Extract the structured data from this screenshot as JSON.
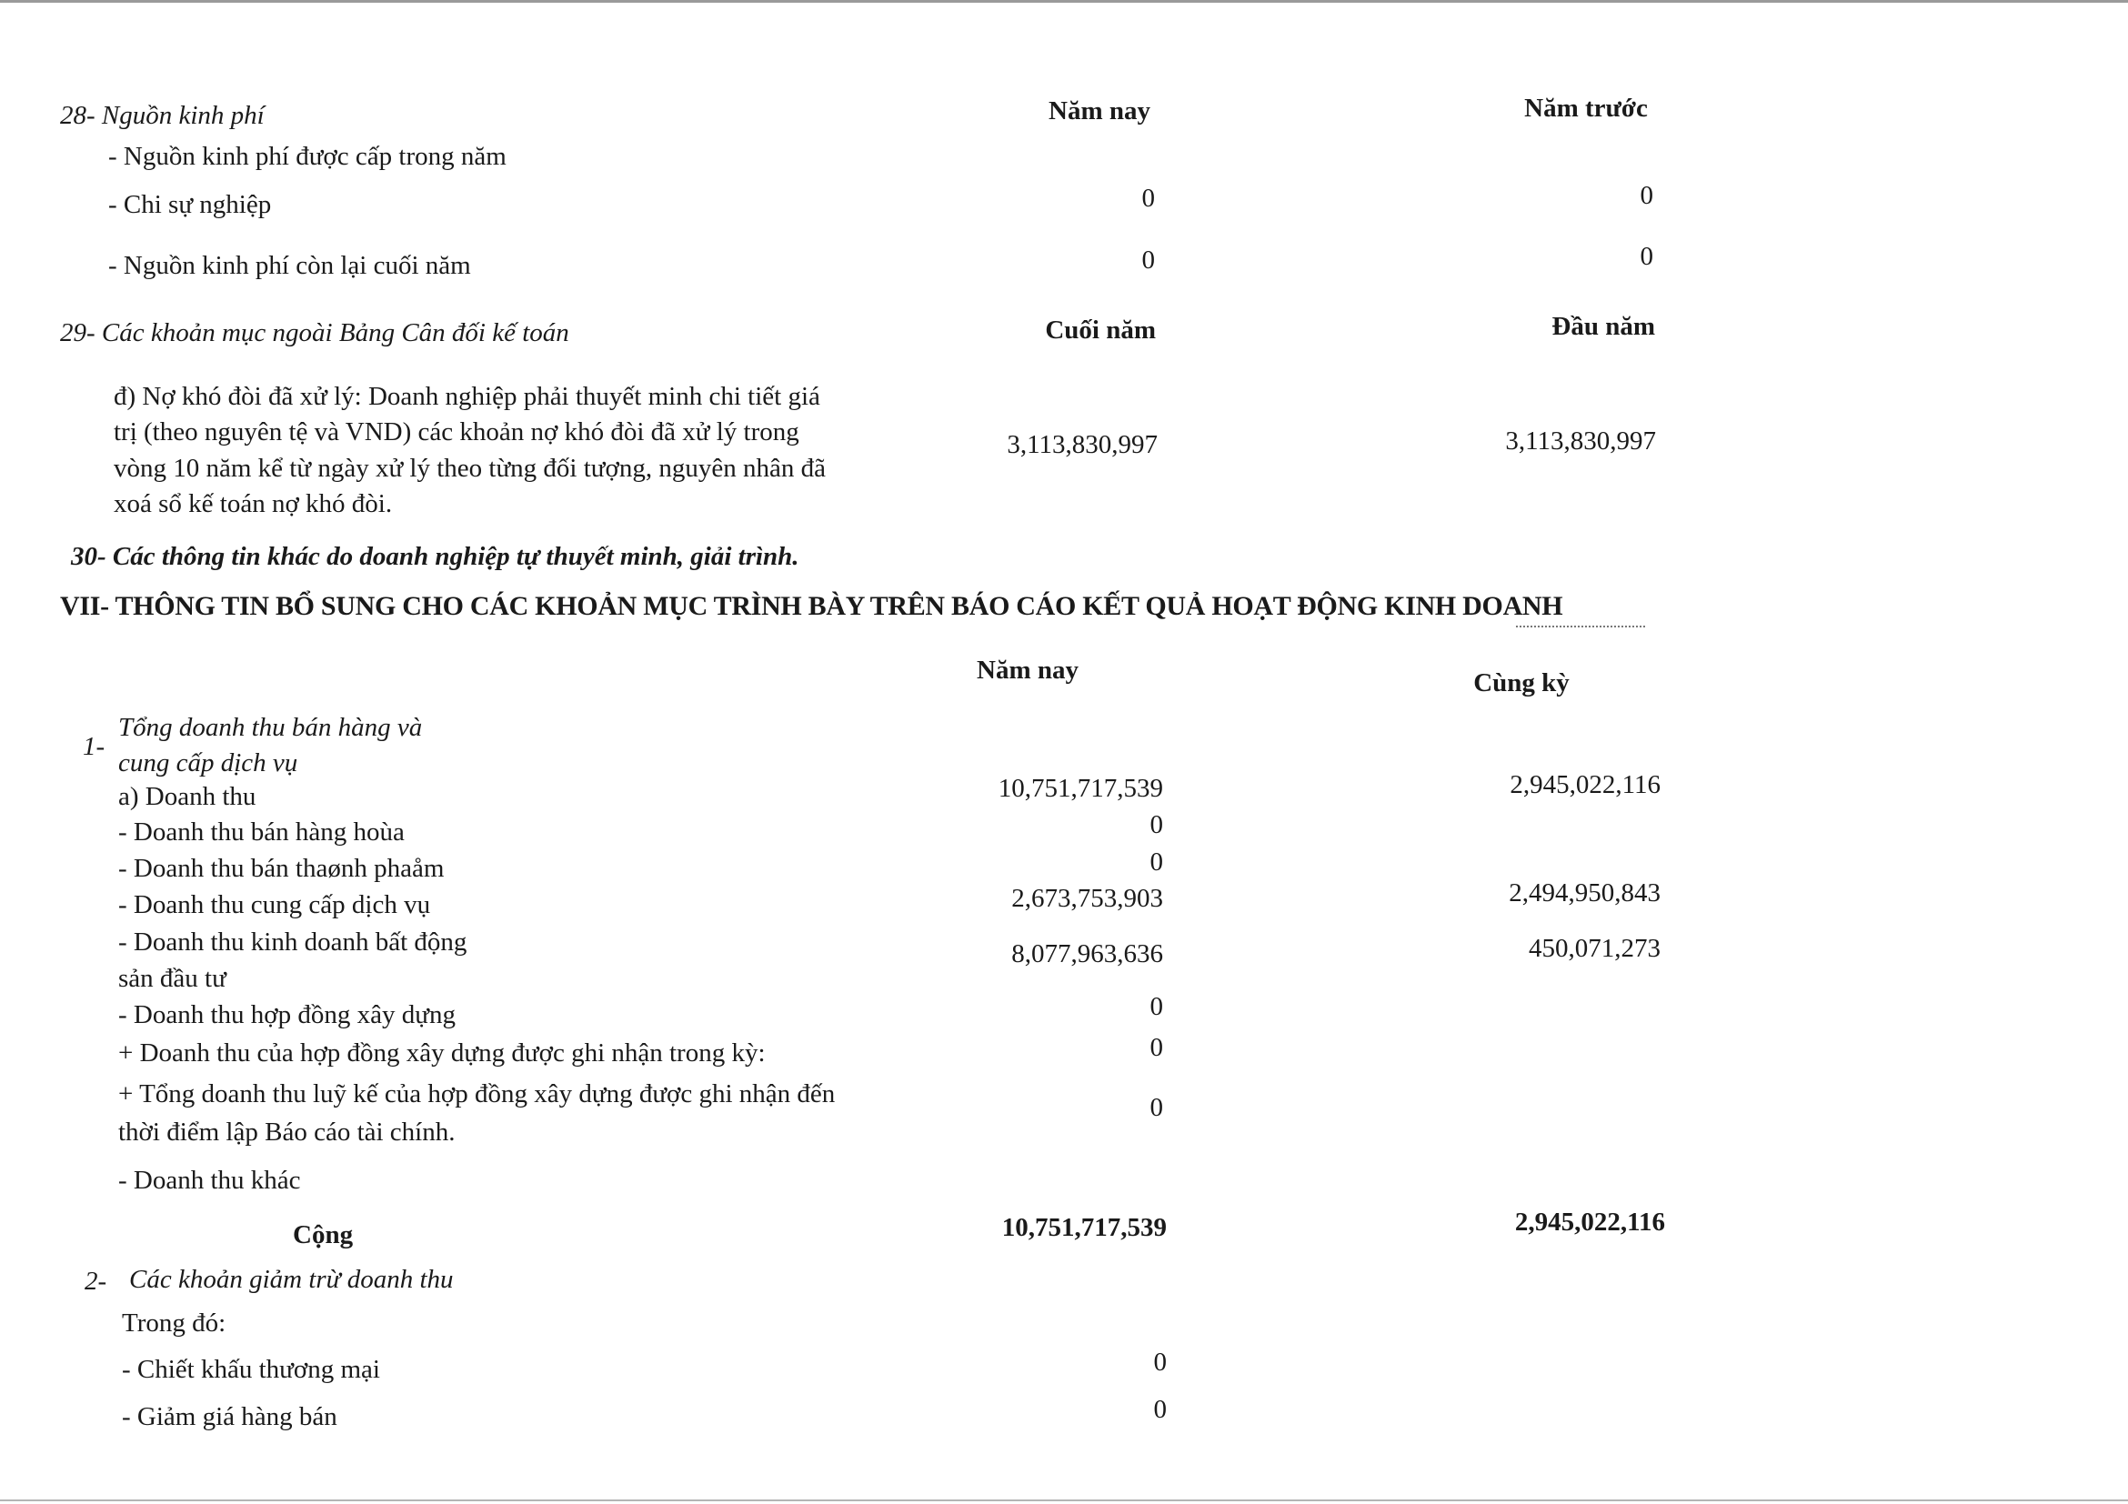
{
  "s28": {
    "title": "28- Nguồn kinh phí",
    "col1": "Năm nay",
    "col2": "Năm trước",
    "rows": [
      {
        "label": "- Nguồn kinh phí được cấp trong năm",
        "v1": "",
        "v2": ""
      },
      {
        "label": "- Chi sự nghiệp",
        "v1": "0",
        "v2": "0"
      },
      {
        "label": "- Nguồn kinh phí còn lại cuối năm",
        "v1": "0",
        "v2": "0"
      }
    ]
  },
  "s29": {
    "title": "29- Các khoản mục ngoài Bảng Cân đối kế toán",
    "col1": "Cuối năm",
    "col2": "Đầu năm",
    "para": [
      "đ) Nợ khó đòi đã xử lý: Doanh nghiệp phải thuyết minh chi tiết giá",
      "trị (theo nguyên tệ và VND) các khoản nợ khó đòi đã xử lý trong",
      "vòng 10 năm kể từ ngày xử lý theo từng đối tượng, nguyên nhân đã",
      "xoá sổ kế toán nợ khó đòi."
    ],
    "v1": "3,113,830,997",
    "v2": "3,113,830,997"
  },
  "s30": {
    "title": "30- Các thông tin khác do doanh nghiệp tự thuyết minh, giải trình."
  },
  "s7": {
    "heading": "VII- THÔNG TIN BỔ SUNG CHO CÁC KHOẢN MỤC TRÌNH BÀY TRÊN BÁO CÁO KẾT QUẢ HOẠT ĐỘNG KINH DOANH",
    "col1": "Năm nay",
    "col2": "Cùng kỳ",
    "item1": {
      "num": "1-",
      "title1": "Tổng  doanh thu bán hàng và",
      "title2": "cung cấp dịch vụ",
      "rows": [
        {
          "label": "a) Doanh thu",
          "v1": "10,751,717,539",
          "v2": "2,945,022,116"
        },
        {
          "label": "- Doanh thu bán hàng hoùa",
          "v1": "0",
          "v2": ""
        },
        {
          "label": "- Doanh thu bán thaønh phaåm",
          "v1": "0",
          "v2": ""
        },
        {
          "label": "- Doanh thu cung cấp dịch vụ",
          "v1": "2,673,753,903",
          "v2": "2,494,950,843"
        },
        {
          "label": "- Doanh thu kinh doanh bất động",
          "label2": "sản đầu tư",
          "v1": "8,077,963,636",
          "v2": "450,071,273"
        },
        {
          "label": "- Doanh thu hợp đồng xây dựng",
          "v1": "0",
          "v2": ""
        },
        {
          "label": "+ Doanh thu của hợp đồng xây dựng được ghi nhận trong kỳ:",
          "v1": "0",
          "v2": ""
        },
        {
          "label": "+ Tổng doanh thu luỹ kế của hợp đồng xây dựng được ghi nhận đến",
          "label2": "thời điểm lập Báo cáo tài chính.",
          "v1": "0",
          "v2": ""
        },
        {
          "label": "- Doanh thu khác",
          "v1": "",
          "v2": ""
        }
      ],
      "total": {
        "label": "Cộng",
        "v1": "10,751,717,539",
        "v2": "2,945,022,116"
      }
    },
    "item2": {
      "num": "2-",
      "title": "Các khoản giảm trừ doanh thu",
      "sub": "Trong đó:",
      "rows": [
        {
          "label": "- Chiết khấu thương mại",
          "v1": "0"
        },
        {
          "label": "- Giảm giá hàng bán",
          "v1": "0"
        }
      ]
    }
  }
}
